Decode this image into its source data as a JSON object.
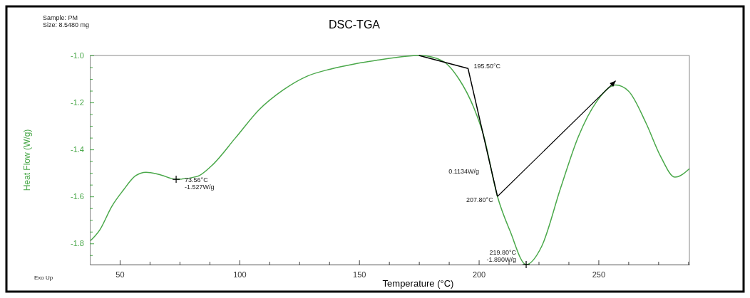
{
  "chart_data": {
    "type": "line",
    "title": "DSC-TGA",
    "xlabel": "Temperature (°C)",
    "ylabel": "Heat Flow (W/g)",
    "xlim": [
      37.5,
      288
    ],
    "ylim": [
      -1.89,
      -1.0
    ],
    "xticks": [
      {
        "value": 37.5,
        "label": null
      },
      50,
      {
        "value": 62.5,
        "label": null
      },
      {
        "value": 75,
        "label": null
      },
      {
        "value": 87.5,
        "label": null
      },
      100,
      {
        "value": 112.5,
        "label": null
      },
      {
        "value": 125,
        "label": null
      },
      {
        "value": 137.5,
        "label": null
      },
      150,
      {
        "value": 162.5,
        "label": null
      },
      {
        "value": 175,
        "label": null
      },
      {
        "value": 187.5,
        "label": null
      },
      200,
      {
        "value": 212.5,
        "label": null
      },
      {
        "value": 225,
        "label": null
      },
      {
        "value": 237.5,
        "label": null
      },
      250,
      {
        "value": 262.5,
        "label": null
      },
      {
        "value": 275,
        "label": null
      },
      {
        "value": 287.5,
        "label": null
      }
    ],
    "yticks": [
      {
        "value": -1.85,
        "label": null
      },
      {
        "value": -1.8,
        "label": "-1.8"
      },
      {
        "value": -1.75,
        "label": null
      },
      {
        "value": -1.7,
        "label": null
      },
      {
        "value": -1.65,
        "label": null
      },
      {
        "value": -1.6,
        "label": "-1.6"
      },
      {
        "value": -1.55,
        "label": null
      },
      {
        "value": -1.5,
        "label": null
      },
      {
        "value": -1.45,
        "label": null
      },
      {
        "value": -1.4,
        "label": "-1.4"
      },
      {
        "value": -1.35,
        "label": null
      },
      {
        "value": -1.3,
        "label": null
      },
      {
        "value": -1.25,
        "label": null
      },
      {
        "value": -1.2,
        "label": "-1.2"
      },
      {
        "value": -1.15,
        "label": null
      },
      {
        "value": -1.1,
        "label": null
      },
      {
        "value": -1.05,
        "label": null
      },
      {
        "value": -1.0,
        "label": "-1.0"
      }
    ],
    "grid": false,
    "marker": "none",
    "line_style": "solid",
    "series": [
      {
        "color": "#4aa84a",
        "x": [
          37.8,
          41.7,
          46.7,
          51.5,
          56.6,
          61,
          66.4,
          73.56,
          82.3,
          88.3,
          98.4,
          108.3,
          118.1,
          128.3,
          138,
          148,
          157,
          175.6,
          184.8,
          191.7,
          198,
          201.9,
          207.8,
          213.1,
          219.8,
          226.3,
          234.2,
          241.5,
          249.4,
          257.2,
          262.6,
          269.8,
          276,
          282,
          288
        ],
        "values": [
          -1.788,
          -1.742,
          -1.642,
          -1.573,
          -1.512,
          -1.497,
          -1.506,
          -1.527,
          -1.515,
          -1.47,
          -1.35,
          -1.23,
          -1.148,
          -1.088,
          -1.058,
          -1.036,
          -1.021,
          -1.0,
          -1.023,
          -1.1,
          -1.224,
          -1.336,
          -1.6,
          -1.748,
          -1.89,
          -1.812,
          -1.564,
          -1.348,
          -1.194,
          -1.126,
          -1.152,
          -1.286,
          -1.43,
          -1.518,
          -1.482
        ]
      },
      {
        "color": "#000000",
        "x": [
          175,
          195.5,
          207.8
        ],
        "values": [
          -1.0,
          -1.055,
          -1.6
        ]
      }
    ],
    "annotations": [
      "Sample: PM\nSize:  8.5480 mg",
      "Exo Up",
      {
        "text": "73.56°C\n-1.527W/g",
        "x": 73.56,
        "y": -1.527
      },
      {
        "text": "195.50°C",
        "x": 195.5,
        "y": -1.055
      },
      "0.1134W/g",
      {
        "text": "207.80°C",
        "x": 207.8,
        "y": -1.6
      },
      {
        "text": "219.80°C\n-1.890W/g",
        "x": 219.8,
        "y": -1.89
      }
    ]
  }
}
